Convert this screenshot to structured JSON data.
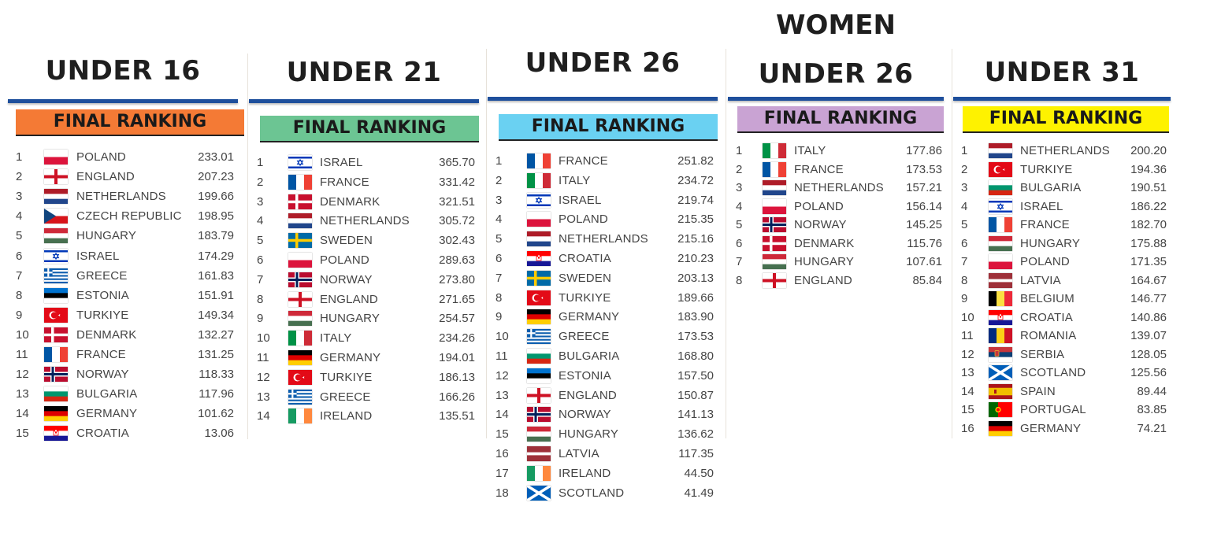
{
  "panels": [
    {
      "title": "UNDER 16",
      "banner": "FINAL RANKING",
      "banner_color": "#f47a35",
      "rows": [
        {
          "rank": "1",
          "flag": "poland",
          "country": "POLAND",
          "points": "233.01"
        },
        {
          "rank": "2",
          "flag": "england",
          "country": "ENGLAND",
          "points": "207.23"
        },
        {
          "rank": "3",
          "flag": "netherlands",
          "country": "NETHERLANDS",
          "points": "199.66"
        },
        {
          "rank": "4",
          "flag": "czech",
          "country": "CZECH REPUBLIC",
          "points": "198.95"
        },
        {
          "rank": "5",
          "flag": "hungary",
          "country": "HUNGARY",
          "points": "183.79"
        },
        {
          "rank": "6",
          "flag": "israel",
          "country": "ISRAEL",
          "points": "174.29"
        },
        {
          "rank": "7",
          "flag": "greece",
          "country": "GREECE",
          "points": "161.83"
        },
        {
          "rank": "8",
          "flag": "estonia",
          "country": "ESTONIA",
          "points": "151.91"
        },
        {
          "rank": "9",
          "flag": "turkiye",
          "country": "TURKIYE",
          "points": "149.34"
        },
        {
          "rank": "10",
          "flag": "denmark",
          "country": "DENMARK",
          "points": "132.27"
        },
        {
          "rank": "11",
          "flag": "france",
          "country": "FRANCE",
          "points": "131.25"
        },
        {
          "rank": "12",
          "flag": "norway",
          "country": "NORWAY",
          "points": "118.33"
        },
        {
          "rank": "13",
          "flag": "bulgaria",
          "country": "BULGARIA",
          "points": "117.96"
        },
        {
          "rank": "14",
          "flag": "germany",
          "country": "GERMANY",
          "points": "101.62"
        },
        {
          "rank": "15",
          "flag": "croatia",
          "country": "CROATIA",
          "points": "13.06"
        }
      ]
    },
    {
      "title": "UNDER 21",
      "banner": "FINAL RANKING",
      "banner_color": "#6cc593",
      "rows": [
        {
          "rank": "1",
          "flag": "israel",
          "country": "ISRAEL",
          "points": "365.70"
        },
        {
          "rank": "2",
          "flag": "france",
          "country": "FRANCE",
          "points": "331.42"
        },
        {
          "rank": "3",
          "flag": "denmark",
          "country": "DENMARK",
          "points": "321.51"
        },
        {
          "rank": "4",
          "flag": "netherlands",
          "country": "NETHERLANDS",
          "points": "305.72"
        },
        {
          "rank": "5",
          "flag": "sweden",
          "country": "SWEDEN",
          "points": "302.43"
        },
        {
          "rank": "6",
          "flag": "poland",
          "country": "POLAND",
          "points": "289.63"
        },
        {
          "rank": "7",
          "flag": "norway",
          "country": "NORWAY",
          "points": "273.80"
        },
        {
          "rank": "8",
          "flag": "england",
          "country": "ENGLAND",
          "points": "271.65"
        },
        {
          "rank": "9",
          "flag": "hungary",
          "country": "HUNGARY",
          "points": "254.57"
        },
        {
          "rank": "10",
          "flag": "italy",
          "country": "ITALY",
          "points": "234.26"
        },
        {
          "rank": "11",
          "flag": "germany",
          "country": "GERMANY",
          "points": "194.01"
        },
        {
          "rank": "12",
          "flag": "turkiye",
          "country": "TURKIYE",
          "points": "186.13"
        },
        {
          "rank": "13",
          "flag": "greece",
          "country": "GREECE",
          "points": "166.26"
        },
        {
          "rank": "14",
          "flag": "ireland",
          "country": "IRELAND",
          "points": "135.51"
        }
      ]
    },
    {
      "title": "UNDER 26",
      "banner": "FINAL RANKING",
      "banner_color": "#6ad1f2",
      "rows": [
        {
          "rank": "1",
          "flag": "france",
          "country": "FRANCE",
          "points": "251.82"
        },
        {
          "rank": "2",
          "flag": "italy",
          "country": "ITALY",
          "points": "234.72"
        },
        {
          "rank": "3",
          "flag": "israel",
          "country": "ISRAEL",
          "points": "219.74"
        },
        {
          "rank": "4",
          "flag": "poland",
          "country": "POLAND",
          "points": "215.35"
        },
        {
          "rank": "5",
          "flag": "netherlands",
          "country": "NETHERLANDS",
          "points": "215.16"
        },
        {
          "rank": "6",
          "flag": "croatia",
          "country": "CROATIA",
          "points": "210.23"
        },
        {
          "rank": "7",
          "flag": "sweden",
          "country": "SWEDEN",
          "points": "203.13"
        },
        {
          "rank": "8",
          "flag": "turkiye",
          "country": "TURKIYE",
          "points": "189.66"
        },
        {
          "rank": "9",
          "flag": "germany",
          "country": "GERMANY",
          "points": "183.90"
        },
        {
          "rank": "10",
          "flag": "greece",
          "country": "GREECE",
          "points": "173.53"
        },
        {
          "rank": "11",
          "flag": "bulgaria",
          "country": "BULGARIA",
          "points": "168.80"
        },
        {
          "rank": "12",
          "flag": "estonia",
          "country": "ESTONIA",
          "points": "157.50"
        },
        {
          "rank": "13",
          "flag": "england",
          "country": "ENGLAND",
          "points": "150.87"
        },
        {
          "rank": "14",
          "flag": "norway",
          "country": "NORWAY",
          "points": "141.13"
        },
        {
          "rank": "15",
          "flag": "hungary",
          "country": "HUNGARY",
          "points": "136.62"
        },
        {
          "rank": "16",
          "flag": "latvia",
          "country": "LATVIA",
          "points": "117.35"
        },
        {
          "rank": "17",
          "flag": "ireland",
          "country": "IRELAND",
          "points": "44.50"
        },
        {
          "rank": "18",
          "flag": "scotland",
          "country": "SCOTLAND",
          "points": "41.49"
        }
      ]
    },
    {
      "super_title": "WOMEN",
      "title": "UNDER 26",
      "banner": "FINAL RANKING",
      "banner_color": "#c9a3d3",
      "rows": [
        {
          "rank": "1",
          "flag": "italy",
          "country": "ITALY",
          "points": "177.86"
        },
        {
          "rank": "2",
          "flag": "france",
          "country": "FRANCE",
          "points": "173.53"
        },
        {
          "rank": "3",
          "flag": "netherlands",
          "country": "NETHERLANDS",
          "points": "157.21"
        },
        {
          "rank": "4",
          "flag": "poland",
          "country": "POLAND",
          "points": "156.14"
        },
        {
          "rank": "5",
          "flag": "norway",
          "country": "NORWAY",
          "points": "145.25"
        },
        {
          "rank": "6",
          "flag": "denmark",
          "country": "DENMARK",
          "points": "115.76"
        },
        {
          "rank": "7",
          "flag": "hungary",
          "country": "HUNGARY",
          "points": "107.61"
        },
        {
          "rank": "8",
          "flag": "england",
          "country": "ENGLAND",
          "points": "85.84"
        }
      ]
    },
    {
      "title": "UNDER 31",
      "banner": "FINAL RANKING",
      "banner_color": "#fef200",
      "rows": [
        {
          "rank": "1",
          "flag": "netherlands",
          "country": "NETHERLANDS",
          "points": "200.20"
        },
        {
          "rank": "2",
          "flag": "turkiye",
          "country": "TURKIYE",
          "points": "194.36"
        },
        {
          "rank": "3",
          "flag": "bulgaria",
          "country": "BULGARIA",
          "points": "190.51"
        },
        {
          "rank": "4",
          "flag": "israel",
          "country": "ISRAEL",
          "points": "186.22"
        },
        {
          "rank": "5",
          "flag": "france",
          "country": "FRANCE",
          "points": "182.70"
        },
        {
          "rank": "6",
          "flag": "hungary",
          "country": "HUNGARY",
          "points": "175.88"
        },
        {
          "rank": "7",
          "flag": "poland",
          "country": "POLAND",
          "points": "171.35"
        },
        {
          "rank": "8",
          "flag": "latvia",
          "country": "LATVIA",
          "points": "164.67"
        },
        {
          "rank": "9",
          "flag": "belgium",
          "country": "BELGIUM",
          "points": "146.77"
        },
        {
          "rank": "10",
          "flag": "croatia",
          "country": "CROATIA",
          "points": "140.86"
        },
        {
          "rank": "11",
          "flag": "romania",
          "country": "ROMANIA",
          "points": "139.07"
        },
        {
          "rank": "12",
          "flag": "serbia",
          "country": "SERBIA",
          "points": "128.05"
        },
        {
          "rank": "13",
          "flag": "scotland",
          "country": "SCOTLAND",
          "points": "125.56"
        },
        {
          "rank": "14",
          "flag": "spain",
          "country": "SPAIN",
          "points": "89.44"
        },
        {
          "rank": "15",
          "flag": "portugal",
          "country": "PORTUGAL",
          "points": "83.85"
        },
        {
          "rank": "16",
          "flag": "germany",
          "country": "GERMANY",
          "points": "74.21"
        }
      ]
    }
  ],
  "colors": {
    "rule": "#1e4f9c",
    "text": "#444444",
    "title": "#1f1f1f"
  }
}
